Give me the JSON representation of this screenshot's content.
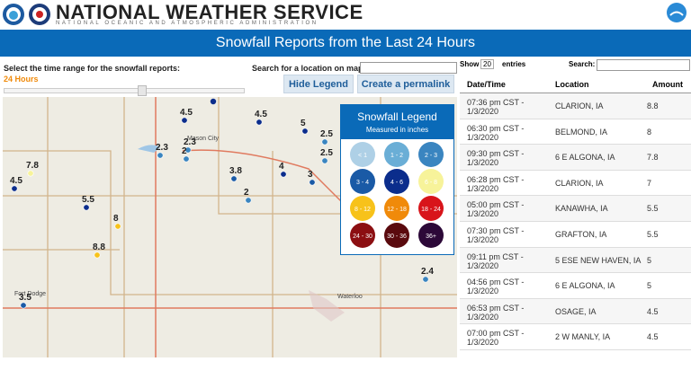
{
  "header": {
    "title": "NATIONAL WEATHER SERVICE",
    "subtitle": "NATIONAL OCEANIC AND ATMOSPHERIC ADMINISTRATION"
  },
  "banner": {
    "title": "Snowfall Reports from the Last 24 Hours"
  },
  "controls": {
    "range_label": "Select the time range for the snowfall reports:",
    "range_value": "24 Hours",
    "search_label": "Search for a location on map:",
    "hide_legend": "Hide Legend",
    "permalink": "Create a permalink"
  },
  "legend": {
    "title": "Snowfall Legend",
    "subtitle": "Measured in inches",
    "items": [
      {
        "label": "< 1",
        "color": "#aed0e6"
      },
      {
        "label": "1 - 2",
        "color": "#6aaed6"
      },
      {
        "label": "2 - 3",
        "color": "#3a85c0"
      },
      {
        "label": "3 - 4",
        "color": "#1a5aa6"
      },
      {
        "label": "4 - 6",
        "color": "#0b2d8c"
      },
      {
        "label": "6 - 8",
        "color": "#f7f39a"
      },
      {
        "label": "8 - 12",
        "color": "#f7c21a"
      },
      {
        "label": "12 - 18",
        "color": "#f08a0a"
      },
      {
        "label": "18 - 24",
        "color": "#d8141a"
      },
      {
        "label": "24 - 30",
        "color": "#8c0f12"
      },
      {
        "label": "30 - 36",
        "color": "#5a0a0e"
      },
      {
        "label": "36+",
        "color": "#2c0838"
      }
    ]
  },
  "map": {
    "places": [
      "Mason City",
      "Fort Dodge",
      "Waterloo"
    ],
    "markers": [
      {
        "label": "4.5",
        "color": "#0b2d8c"
      },
      {
        "label": "4.5",
        "color": "#0b2d8c"
      },
      {
        "label": "5",
        "color": "#0b2d8c"
      },
      {
        "label": "2.5",
        "color": "#3a85c0"
      },
      {
        "label": "2.3",
        "color": "#3a85c0"
      },
      {
        "label": "2.3",
        "color": "#3a85c0"
      },
      {
        "label": "2",
        "color": "#3a85c0"
      },
      {
        "label": "2.5",
        "color": "#3a85c0"
      },
      {
        "label": "3.8",
        "color": "#1a5aa6"
      },
      {
        "label": "4",
        "color": "#0b2d8c"
      },
      {
        "label": "3",
        "color": "#1a5aa6"
      },
      {
        "label": "7.8",
        "color": "#f7f39a"
      },
      {
        "label": "4.5",
        "color": "#0b2d8c"
      },
      {
        "label": "2",
        "color": "#3a85c0"
      },
      {
        "label": "5.5",
        "color": "#0b2d8c"
      },
      {
        "label": "8",
        "color": "#f7c21a"
      },
      {
        "label": "8.8",
        "color": "#f7c21a"
      },
      {
        "label": "2.4",
        "color": "#3a85c0"
      },
      {
        "label": "3.5",
        "color": "#1a5aa6"
      }
    ]
  },
  "table": {
    "show": "Show",
    "page_size": "20",
    "entries": "entries",
    "search": "Search:",
    "columns": [
      "Date/Time",
      "Location",
      "Amount"
    ],
    "rows": [
      [
        "07:36 pm CST - 1/3/2020",
        "CLARION, IA",
        "8.8"
      ],
      [
        "06:30 pm CST - 1/3/2020",
        "BELMOND, IA",
        "8"
      ],
      [
        "09:30 pm CST - 1/3/2020",
        "6 E ALGONA, IA",
        "7.8"
      ],
      [
        "06:28 pm CST - 1/3/2020",
        "CLARION, IA",
        "7"
      ],
      [
        "05:00 pm CST - 1/3/2020",
        "KANAWHA, IA",
        "5.5"
      ],
      [
        "07:30 pm CST - 1/3/2020",
        "GRAFTON, IA",
        "5.5"
      ],
      [
        "09:11 pm CST - 1/3/2020",
        "5 ESE NEW HAVEN, IA",
        "5"
      ],
      [
        "04:56 pm CST - 1/3/2020",
        "6 E ALGONA, IA",
        "5"
      ],
      [
        "06:53 pm CST - 1/3/2020",
        "OSAGE, IA",
        "4.5"
      ],
      [
        "07:00 pm CST - 1/3/2020",
        "2 W MANLY, IA",
        "4.5"
      ]
    ]
  }
}
